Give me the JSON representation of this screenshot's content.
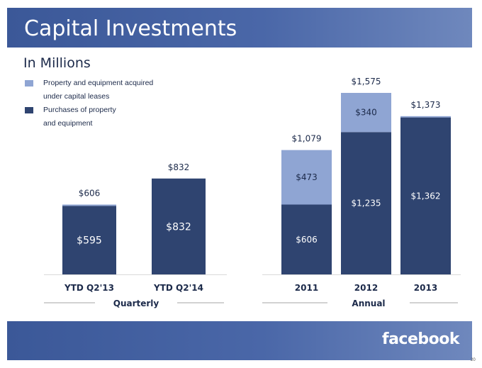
{
  "slide": {
    "title": "Capital Investments",
    "subtitle": "In Millions",
    "page_number": "20",
    "logo_text": "facebook"
  },
  "legend": [
    {
      "label_line1": "Property and equipment acquired",
      "label_line2": "under capital leases",
      "color": "#8fa5d3"
    },
    {
      "label_line1": "Purchases of property",
      "label_line2": "and equipment",
      "color": "#2f4470"
    }
  ],
  "colors": {
    "dark_bar": "#2f4470",
    "light_bar": "#8fa5d3",
    "band": "#3b5898",
    "text": "#1c2a4a"
  },
  "chart_data": [
    {
      "type": "bar",
      "stacked": true,
      "group_label": "Quarterly",
      "categories": [
        "YTD Q2'13",
        "YTD Q2'14"
      ],
      "series": [
        {
          "name": "Purchases of property and equipment",
          "values": [
            595,
            832
          ],
          "labels": [
            "$595",
            "$832"
          ]
        },
        {
          "name": "Property and equipment acquired under capital leases",
          "values": [
            11,
            0
          ],
          "labels": [
            "",
            ""
          ]
        }
      ],
      "totals": [
        606,
        832
      ],
      "total_labels": [
        "$606",
        "$832"
      ],
      "ylim": [
        0,
        1575
      ]
    },
    {
      "type": "bar",
      "stacked": true,
      "group_label": "Annual",
      "categories": [
        "2011",
        "2012",
        "2013"
      ],
      "series": [
        {
          "name": "Purchases of property and equipment",
          "values": [
            606,
            1235,
            1362
          ],
          "labels": [
            "$606",
            "$1,235",
            "$1,362"
          ]
        },
        {
          "name": "Property and equipment acquired under capital leases",
          "values": [
            473,
            340,
            11
          ],
          "labels": [
            "$473",
            "$340",
            ""
          ]
        }
      ],
      "totals": [
        1079,
        1575,
        1373
      ],
      "total_labels": [
        "$1,079",
        "$1,575",
        "$1,373"
      ],
      "ylim": [
        0,
        1575
      ]
    }
  ]
}
